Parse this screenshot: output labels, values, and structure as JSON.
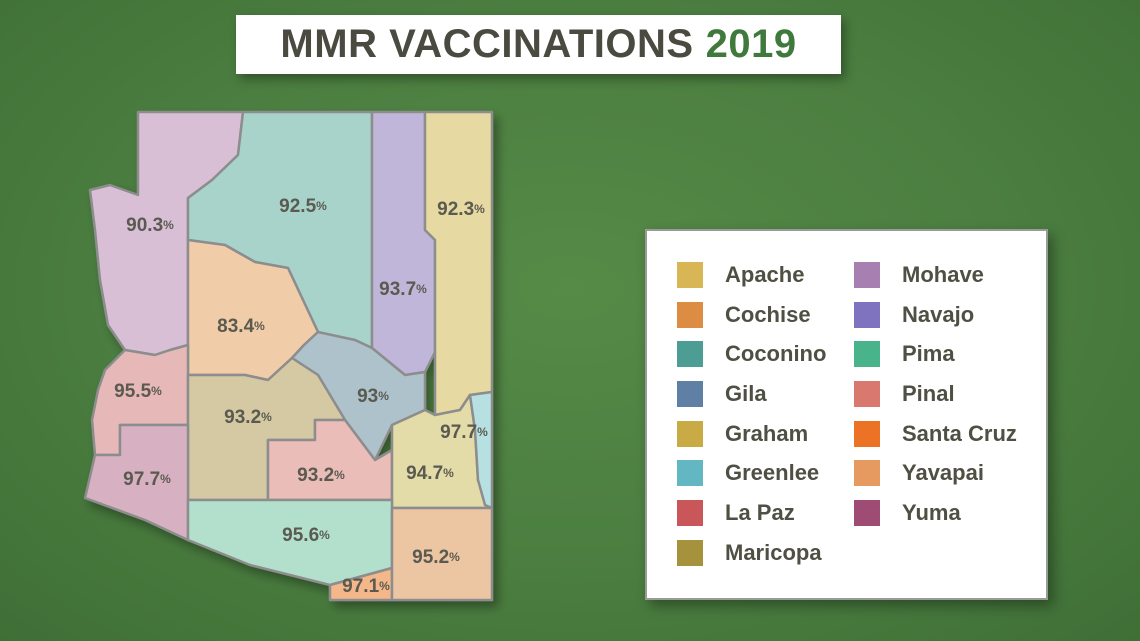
{
  "title": {
    "main": "MMR VACCINATIONS",
    "year": "2019"
  },
  "colors": {
    "title_text": "#4a4a40",
    "title_year": "#3f7a3c",
    "border": "#8d8d8d",
    "label_text": "#5a5a50"
  },
  "counties": [
    {
      "name": "Mohave",
      "rate": "90.3",
      "fill": "#d8bfd6"
    },
    {
      "name": "Coconino",
      "rate": "92.5",
      "fill": "#a7d3cb"
    },
    {
      "name": "Navajo",
      "rate": "93.7",
      "fill": "#c0b6d9"
    },
    {
      "name": "Apache",
      "rate": "92.3",
      "fill": "#e6d9a2"
    },
    {
      "name": "Yavapai",
      "rate": "83.4",
      "fill": "#f0cda8"
    },
    {
      "name": "Gila",
      "rate": "93",
      "fill": "#aec2cc"
    },
    {
      "name": "La Paz",
      "rate": "95.5",
      "fill": "#e6b8b8"
    },
    {
      "name": "Maricopa",
      "rate": "93.2",
      "fill": "#d5c9a4"
    },
    {
      "name": "Pinal",
      "rate": "93.2",
      "fill": "#eabdb9"
    },
    {
      "name": "Graham",
      "rate": "94.7",
      "fill": "#e3dba8"
    },
    {
      "name": "Greenlee",
      "rate": "97.7",
      "fill": "#b7e0e2"
    },
    {
      "name": "Yuma",
      "rate": "97.7",
      "fill": "#d7b0c1"
    },
    {
      "name": "Pima",
      "rate": "95.6",
      "fill": "#b3e0cd"
    },
    {
      "name": "Santa Cruz",
      "rate": "97.1",
      "fill": "#f3b78a"
    },
    {
      "name": "Cochise",
      "rate": "95.2",
      "fill": "#ecc5a3"
    }
  ],
  "legend": {
    "left": [
      {
        "label": "Apache",
        "color": "#d9b655"
      },
      {
        "label": "Cochise",
        "color": "#dc8d43"
      },
      {
        "label": "Coconino",
        "color": "#4c9e95"
      },
      {
        "label": "Gila",
        "color": "#5f7fa4"
      },
      {
        "label": "Graham",
        "color": "#c9ab45"
      },
      {
        "label": "Greenlee",
        "color": "#63b7c3"
      },
      {
        "label": "La Paz",
        "color": "#c9575a"
      },
      {
        "label": "Maricopa",
        "color": "#a6913c"
      }
    ],
    "right": [
      {
        "label": "Mohave",
        "color": "#a77fb0"
      },
      {
        "label": "Navajo",
        "color": "#7f72be"
      },
      {
        "label": "Pima",
        "color": "#49b48c"
      },
      {
        "label": "Pinal",
        "color": "#d9786f"
      },
      {
        "label": "Santa Cruz",
        "color": "#ec7326"
      },
      {
        "label": "Yavapai",
        "color": "#e69a60"
      },
      {
        "label": "Yuma",
        "color": "#9f4c74"
      }
    ]
  }
}
